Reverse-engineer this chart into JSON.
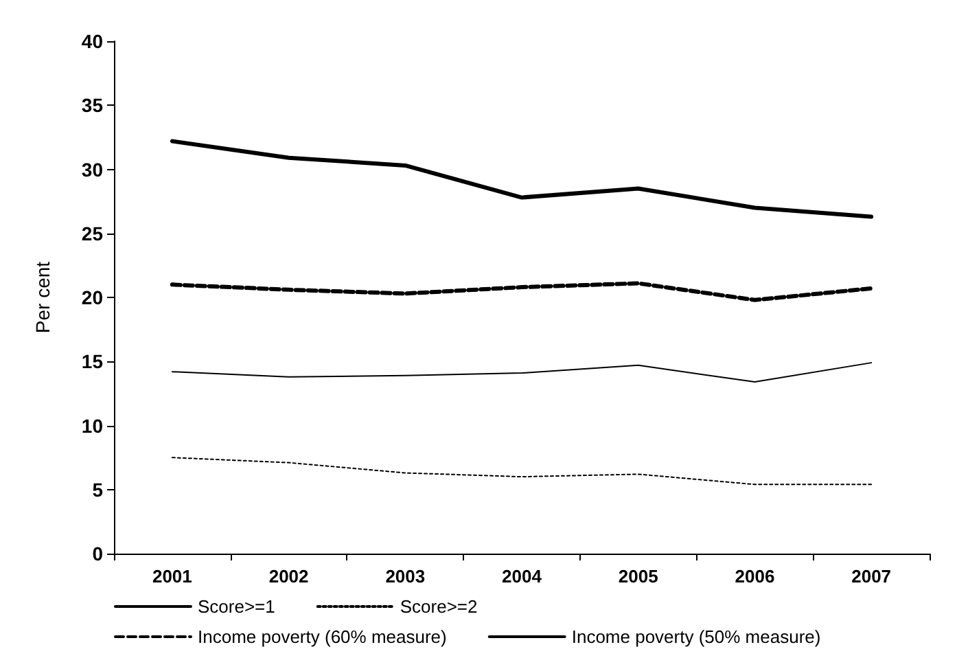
{
  "chart_data": {
    "type": "line",
    "ylabel": "Per cent",
    "categories": [
      "2001",
      "2002",
      "2003",
      "2004",
      "2005",
      "2006",
      "2007"
    ],
    "series": [
      {
        "name": "Score>=1",
        "color": "#000000",
        "line_style": "solid",
        "values": [
          32.2,
          30.9,
          30.3,
          27.8,
          28.5,
          27.0,
          26.3
        ]
      },
      {
        "name": "Score>=2",
        "color": "#000000",
        "line_style": "dotted",
        "values": [
          7.5,
          7.1,
          6.3,
          6.0,
          6.2,
          5.4,
          5.4
        ]
      },
      {
        "name": "Income poverty (60% measure)",
        "color": "#000000",
        "line_style": "dashed",
        "values": [
          21.0,
          20.6,
          20.3,
          20.8,
          21.1,
          19.8,
          20.7
        ]
      },
      {
        "name": "Income poverty (50% measure)",
        "color": "#000000",
        "line_style": "solid",
        "values": [
          14.2,
          13.8,
          13.9,
          14.1,
          14.7,
          13.4,
          14.9
        ]
      }
    ],
    "ylim": [
      0,
      40
    ],
    "yticks": [
      0,
      5,
      10,
      15,
      20,
      25,
      30,
      35,
      40
    ],
    "grid": false,
    "legend": "bottom",
    "marker": "none"
  }
}
